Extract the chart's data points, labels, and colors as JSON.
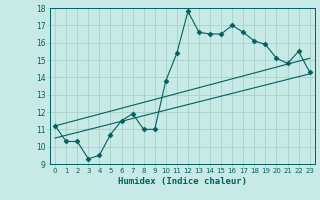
{
  "title": "",
  "xlabel": "Humidex (Indice chaleur)",
  "xlim": [
    -0.5,
    23.5
  ],
  "ylim": [
    9,
    18
  ],
  "xticks": [
    0,
    1,
    2,
    3,
    4,
    5,
    6,
    7,
    8,
    9,
    10,
    11,
    12,
    13,
    14,
    15,
    16,
    17,
    18,
    19,
    20,
    21,
    22,
    23
  ],
  "yticks": [
    9,
    10,
    11,
    12,
    13,
    14,
    15,
    16,
    17,
    18
  ],
  "background_color": "#c8eae6",
  "grid_color": "#aad4cc",
  "line_color": "#006060",
  "curve_x": [
    0,
    1,
    2,
    3,
    4,
    5,
    6,
    7,
    8,
    9,
    10,
    11,
    12,
    13,
    14,
    15,
    16,
    17,
    18,
    19,
    20,
    21,
    22,
    23
  ],
  "curve_y": [
    11.2,
    10.3,
    10.3,
    9.3,
    9.5,
    10.7,
    11.5,
    11.9,
    11.0,
    11.0,
    13.8,
    15.4,
    17.8,
    16.6,
    16.5,
    16.5,
    17.0,
    16.6,
    16.1,
    15.9,
    15.1,
    14.8,
    15.5,
    14.3
  ],
  "line1_x": [
    0,
    23
  ],
  "line1_y": [
    10.5,
    14.2
  ],
  "line2_x": [
    0,
    23
  ],
  "line2_y": [
    11.2,
    15.1
  ],
  "marker": "D",
  "marker_size": 2.5
}
